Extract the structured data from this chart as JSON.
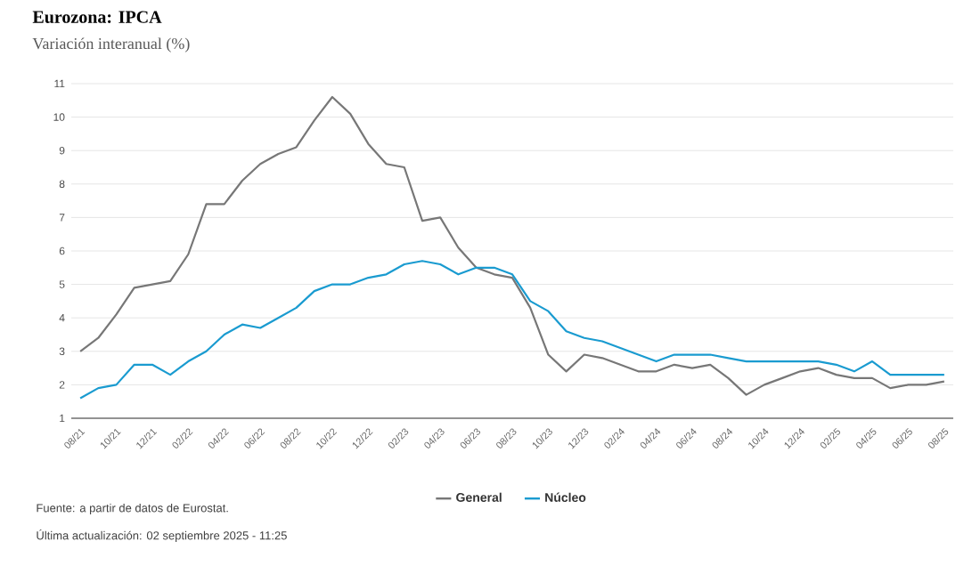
{
  "chart_data": {
    "type": "line",
    "title": "Eurozona: IPCA",
    "subtitle": "Variación interanual (%)",
    "categories": [
      "08/21",
      null,
      "10/21",
      null,
      "12/21",
      null,
      "02/22",
      null,
      "04/22",
      null,
      "06/22",
      null,
      "08/22",
      null,
      "10/22",
      null,
      "12/22",
      null,
      "02/23",
      null,
      "04/23",
      null,
      "06/23",
      null,
      "08/23",
      null,
      "10/23",
      null,
      "12/23",
      null,
      "02/24",
      null,
      "04/24",
      null,
      "06/24",
      null,
      "08/24",
      null,
      "10/24",
      null,
      "12/24",
      null,
      "02/25",
      null,
      "04/25",
      null,
      "06/25",
      null,
      "08/25"
    ],
    "series": [
      {
        "name": "General",
        "color": "#777777",
        "values": [
          3.0,
          3.4,
          4.1,
          4.9,
          5.0,
          5.1,
          5.9,
          7.4,
          7.4,
          8.1,
          8.6,
          8.9,
          9.1,
          9.9,
          10.6,
          10.1,
          9.2,
          8.6,
          8.5,
          6.9,
          7.0,
          6.1,
          5.5,
          5.3,
          5.2,
          4.3,
          2.9,
          2.4,
          2.9,
          2.8,
          2.6,
          2.4,
          2.4,
          2.6,
          2.5,
          2.6,
          2.2,
          1.7,
          2.0,
          2.2,
          2.4,
          2.5,
          2.3,
          2.2,
          2.2,
          1.9,
          2.0,
          2.0,
          2.1
        ]
      },
      {
        "name": "Núcleo",
        "color": "#1a9bd0",
        "values": [
          1.6,
          1.9,
          2.0,
          2.6,
          2.6,
          2.3,
          2.7,
          3.0,
          3.5,
          3.8,
          3.7,
          4.0,
          4.3,
          4.8,
          5.0,
          5.0,
          5.2,
          5.3,
          5.6,
          5.7,
          5.6,
          5.3,
          5.5,
          5.5,
          5.3,
          4.5,
          4.2,
          3.6,
          3.4,
          3.3,
          3.1,
          2.9,
          2.7,
          2.9,
          2.9,
          2.9,
          2.8,
          2.7,
          2.7,
          2.7,
          2.7,
          2.7,
          2.6,
          2.4,
          2.7,
          2.3,
          2.3,
          2.3,
          2.3
        ]
      }
    ],
    "ylim": [
      1,
      11
    ],
    "yticks": [
      1,
      2,
      3,
      4,
      5,
      6,
      7,
      8,
      9,
      10,
      11
    ],
    "grid": "y",
    "legend": "bottom",
    "marker": "none",
    "line_style": "solid",
    "annotations": [
      "Fuente: a partir de datos de Eurostat.",
      "Última actualización: 02 septiembre 2025 - 11:25"
    ]
  }
}
